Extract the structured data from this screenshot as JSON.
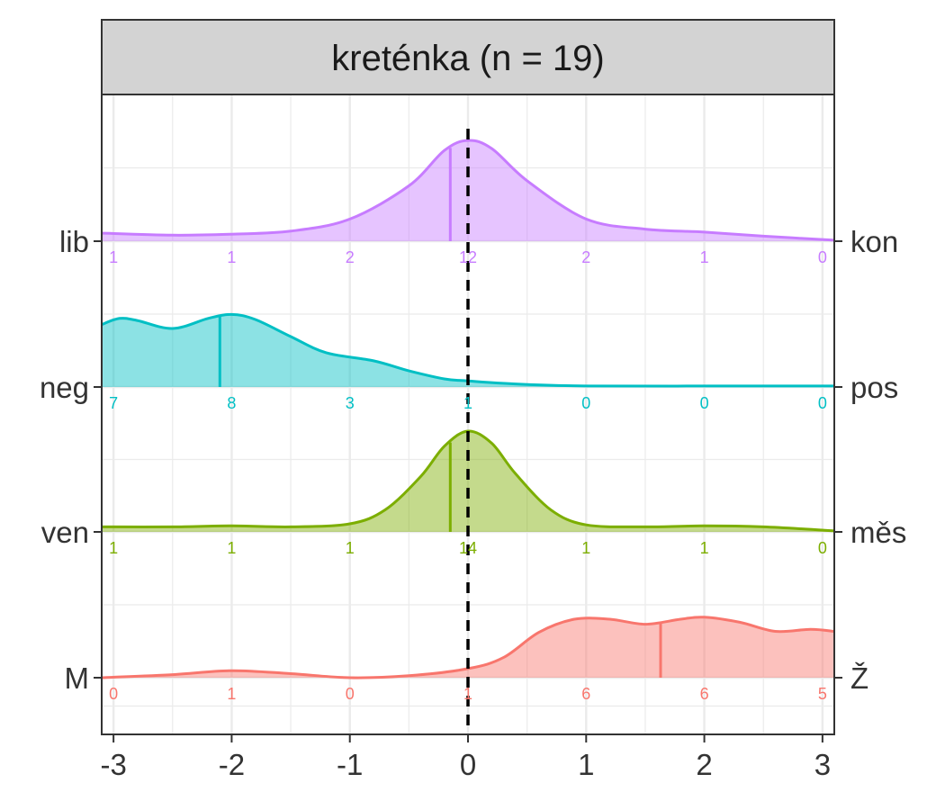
{
  "chart_data": {
    "type": "area",
    "title": "kreténka (n = 19)",
    "xlim": [
      -3.1,
      3.1
    ],
    "x_ticks": [
      "-3",
      "-2",
      "-1",
      "0",
      "1",
      "2",
      "3"
    ],
    "x_tick_values": [
      -3,
      -2,
      -1,
      0,
      1,
      2,
      3
    ],
    "reference_line_x": 0,
    "grid": true,
    "rows": [
      {
        "left_label": "lib",
        "right_label": "kon",
        "color": "#C77CFF",
        "median": -0.15,
        "counts": [
          "1",
          "1",
          "2",
          "12",
          "2",
          "1",
          "0"
        ],
        "density": [
          [
            -3.1,
            0.08
          ],
          [
            -2.5,
            0.06
          ],
          [
            -2,
            0.07
          ],
          [
            -1.5,
            0.1
          ],
          [
            -1,
            0.22
          ],
          [
            -0.5,
            0.55
          ],
          [
            -0.2,
            0.9
          ],
          [
            0,
            1.0
          ],
          [
            0.2,
            0.92
          ],
          [
            0.5,
            0.6
          ],
          [
            1,
            0.22
          ],
          [
            1.5,
            0.12
          ],
          [
            2,
            0.09
          ],
          [
            2.5,
            0.05
          ],
          [
            3.1,
            0.01
          ]
        ]
      },
      {
        "left_label": "neg",
        "right_label": "pos",
        "color": "#00BFC4",
        "median": -2.1,
        "counts": [
          "7",
          "8",
          "3",
          "1",
          "0",
          "0",
          "0"
        ],
        "density": [
          [
            -3.1,
            0.62
          ],
          [
            -2.95,
            0.68
          ],
          [
            -2.8,
            0.66
          ],
          [
            -2.5,
            0.58
          ],
          [
            -2.2,
            0.68
          ],
          [
            -2.0,
            0.72
          ],
          [
            -1.8,
            0.67
          ],
          [
            -1.5,
            0.5
          ],
          [
            -1.2,
            0.34
          ],
          [
            -0.8,
            0.26
          ],
          [
            -0.5,
            0.16
          ],
          [
            -0.2,
            0.08
          ],
          [
            0,
            0.06
          ],
          [
            0.4,
            0.03
          ],
          [
            1,
            0.01
          ],
          [
            2,
            0.01
          ],
          [
            3.1,
            0.01
          ]
        ]
      },
      {
        "left_label": "ven",
        "right_label": "měs",
        "color": "#7CAE00",
        "median": -0.15,
        "counts": [
          "1",
          "1",
          "1",
          "14",
          "1",
          "1",
          "0"
        ],
        "density": [
          [
            -3.1,
            0.05
          ],
          [
            -2.5,
            0.05
          ],
          [
            -2,
            0.06
          ],
          [
            -1.5,
            0.05
          ],
          [
            -1,
            0.08
          ],
          [
            -0.7,
            0.22
          ],
          [
            -0.4,
            0.55
          ],
          [
            -0.2,
            0.85
          ],
          [
            0,
            1.0
          ],
          [
            0.2,
            0.88
          ],
          [
            0.4,
            0.58
          ],
          [
            0.7,
            0.22
          ],
          [
            1,
            0.07
          ],
          [
            1.5,
            0.05
          ],
          [
            2,
            0.06
          ],
          [
            2.5,
            0.05
          ],
          [
            3.1,
            0.01
          ]
        ]
      },
      {
        "left_label": "M",
        "right_label": "Ž",
        "color": "#F8766D",
        "median": 1.63,
        "counts": [
          "0",
          "1",
          "0",
          "1",
          "6",
          "6",
          "5"
        ],
        "density": [
          [
            -3.1,
            0.0
          ],
          [
            -2.5,
            0.03
          ],
          [
            -2,
            0.07
          ],
          [
            -1.5,
            0.04
          ],
          [
            -1,
            0.0
          ],
          [
            -0.5,
            0.02
          ],
          [
            0,
            0.09
          ],
          [
            0.3,
            0.2
          ],
          [
            0.6,
            0.45
          ],
          [
            0.9,
            0.58
          ],
          [
            1.2,
            0.58
          ],
          [
            1.5,
            0.53
          ],
          [
            1.8,
            0.58
          ],
          [
            2.0,
            0.6
          ],
          [
            2.3,
            0.55
          ],
          [
            2.6,
            0.46
          ],
          [
            2.9,
            0.48
          ],
          [
            3.1,
            0.46
          ]
        ]
      }
    ]
  }
}
